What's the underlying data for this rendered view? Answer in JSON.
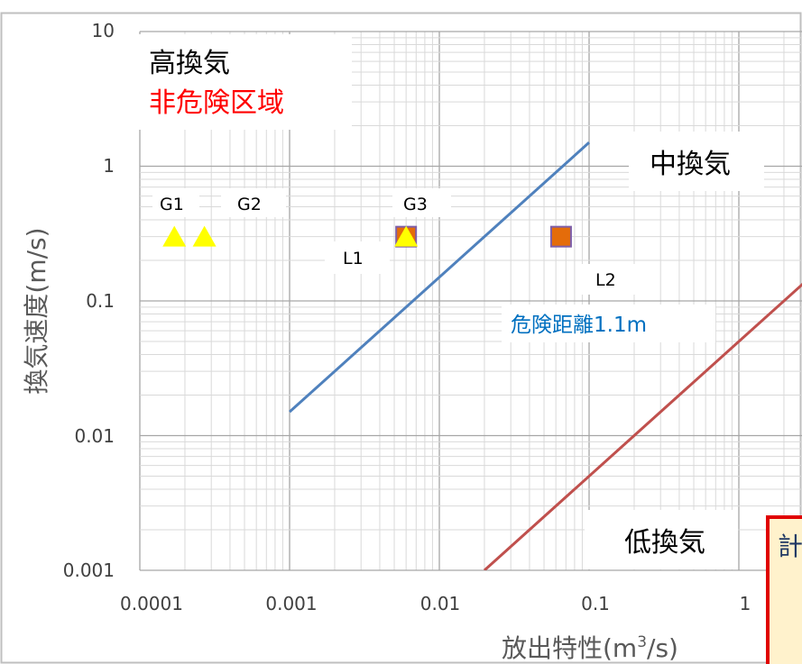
{
  "chart_data": {
    "type": "scatter",
    "xscale": "log",
    "yscale": "log",
    "xlim": [
      0.0001,
      10
    ],
    "ylim": [
      0.001,
      10
    ],
    "xlabel": "放出特性(m³/s)",
    "ylabel": "換気速度(m/s)",
    "xticks": [
      {
        "value": 0.0001,
        "label": "0.0001"
      },
      {
        "value": 0.001,
        "label": "0.001"
      },
      {
        "value": 0.01,
        "label": "0.01"
      },
      {
        "value": 0.1,
        "label": "0.1"
      },
      {
        "value": 1,
        "label": "1"
      }
    ],
    "yticks": [
      {
        "value": 0.001,
        "label": "0.001"
      },
      {
        "value": 0.01,
        "label": "0.01"
      },
      {
        "value": 0.1,
        "label": "0.1"
      },
      {
        "value": 1,
        "label": "1"
      },
      {
        "value": 10,
        "label": "10"
      }
    ],
    "grid": true,
    "lines": [
      {
        "color": "#4f81bd",
        "points": [
          [
            0.001,
            0.015
          ],
          [
            0.1,
            1.5
          ]
        ]
      },
      {
        "color": "#c0504d",
        "points": [
          [
            0.02,
            0.001
          ],
          [
            10,
            0.5
          ]
        ]
      }
    ],
    "series": [
      {
        "marker": "triangle",
        "color": "#ffff00",
        "points": [
          {
            "x": 0.00017,
            "y": 0.3
          },
          {
            "x": 0.00027,
            "y": 0.3
          },
          {
            "x": 0.006,
            "y": 0.3
          }
        ]
      },
      {
        "marker": "square",
        "color": "#e46c0a",
        "points": [
          {
            "x": 0.006,
            "y": 0.3
          },
          {
            "x": 0.065,
            "y": 0.3
          }
        ]
      }
    ],
    "annotations": {
      "high_ventilation": "高換気",
      "non_hazardous": "非危険区域",
      "medium_ventilation": "中換気",
      "low_ventilation": "低換気",
      "hazard_distance": "危険距離1.1m",
      "g1": "G1",
      "g2": "G2",
      "g3": "G3",
      "l1": "L1",
      "l2": "L2",
      "callout_fragment": "計"
    }
  },
  "colors": {
    "frame": "#bfbfbf",
    "grid_major": "#a6a6a6",
    "grid_minor": "#d9d9d9",
    "tick_text": "#404040",
    "axis_title": "#595959",
    "red_text": "#ff0000",
    "blue_text": "#0070c0",
    "callout_border": "#e00000",
    "callout_fill": "#fff2cc"
  }
}
